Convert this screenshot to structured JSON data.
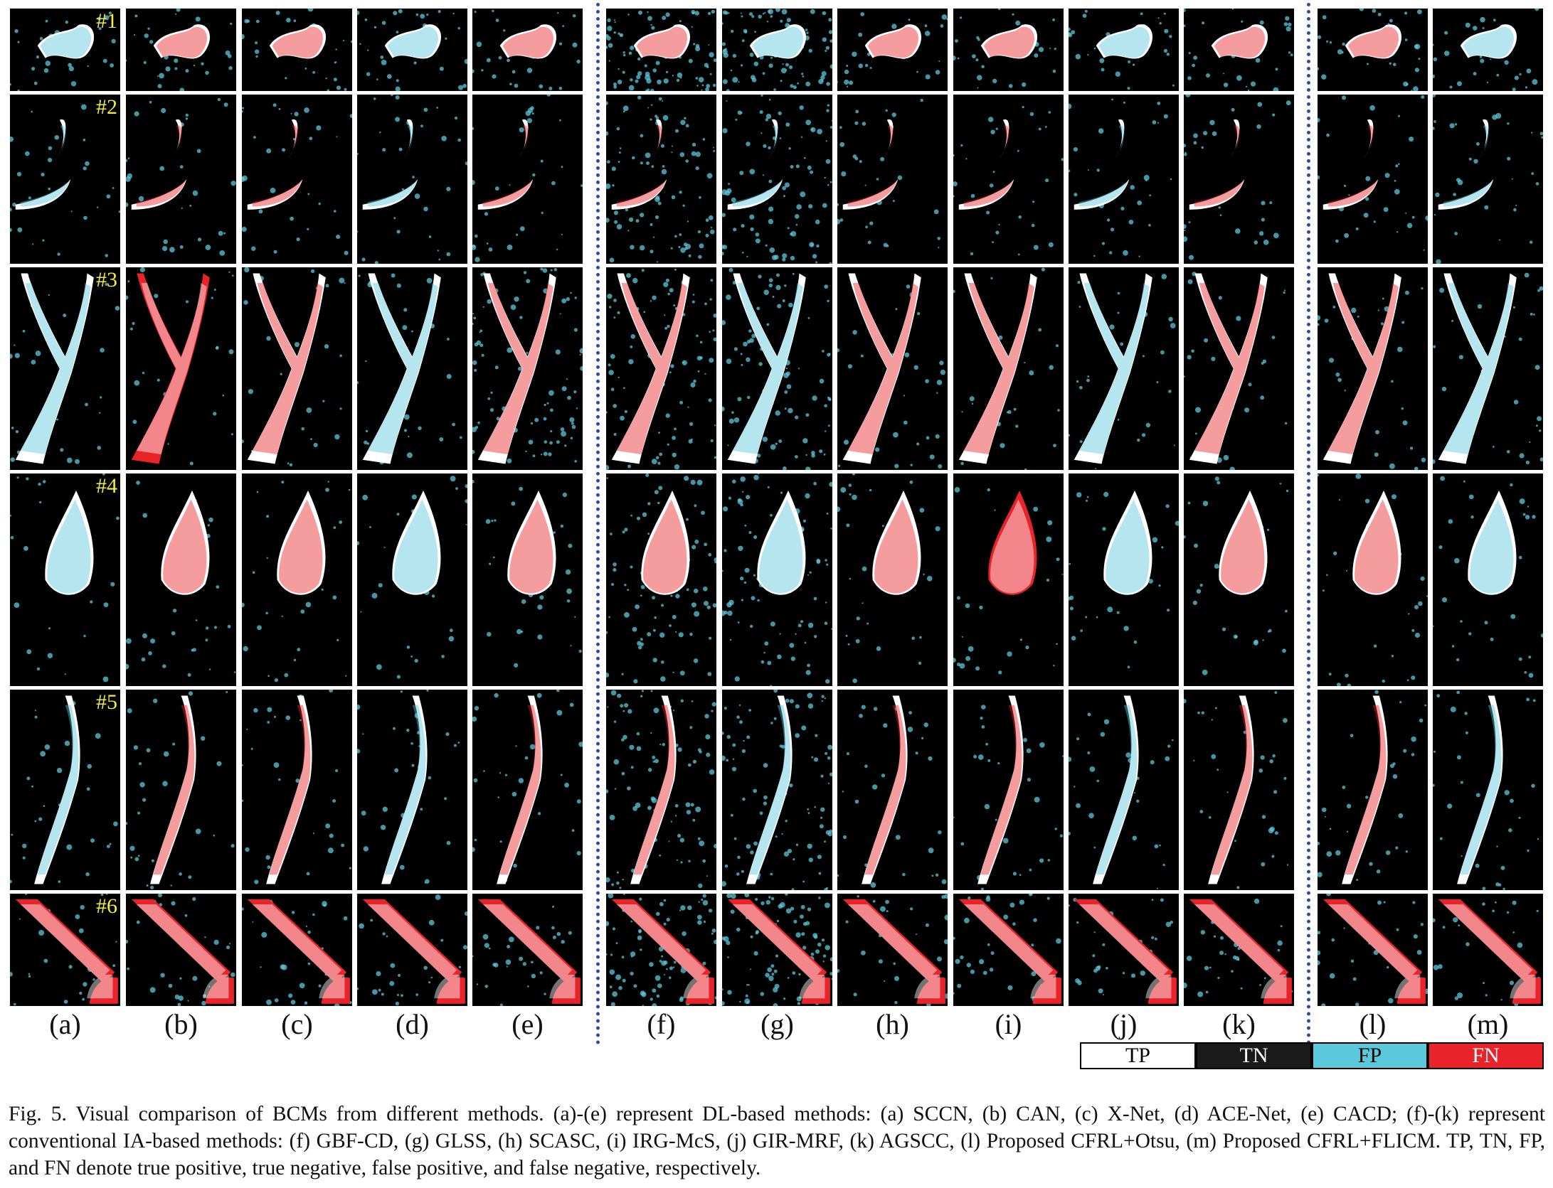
{
  "figure": {
    "columns": [
      "(a)",
      "(b)",
      "(c)",
      "(d)",
      "(e)",
      "(f)",
      "(g)",
      "(h)",
      "(i)",
      "(j)",
      "(k)",
      "(l)",
      "(m)"
    ],
    "rows": [
      "#1",
      "#2",
      "#3",
      "#4",
      "#5",
      "#6"
    ],
    "legend": [
      {
        "label": "TP",
        "bg": "#ffffff",
        "fg": "#000000"
      },
      {
        "label": "TN",
        "bg": "#1a1a1a",
        "fg": "#ffffff"
      },
      {
        "label": "FP",
        "bg": "#5cc8dc",
        "fg": "#000000"
      },
      {
        "label": "FN",
        "bg": "#e8232a",
        "fg": "#ffffff"
      }
    ],
    "caption": "Fig. 5.  Visual comparison of BCMs from different methods. (a)-(e) represent DL-based methods: (a) SCCN, (b) CAN, (c) X-Net, (d) ACE-Net, (e) CACD; (f)-(k) represent conventional IA-based methods: (f) GBF-CD, (g) GLSS, (h) SCASC, (i) IRG-McS, (j) GIR-MRF, (k) AGSCC, (l) Proposed CFRL+Otsu, (m) Proposed CFRL+FLICM. TP, TN, FP, and FN denote true positive, true negative, false positive, and false negative, respectively."
  }
}
